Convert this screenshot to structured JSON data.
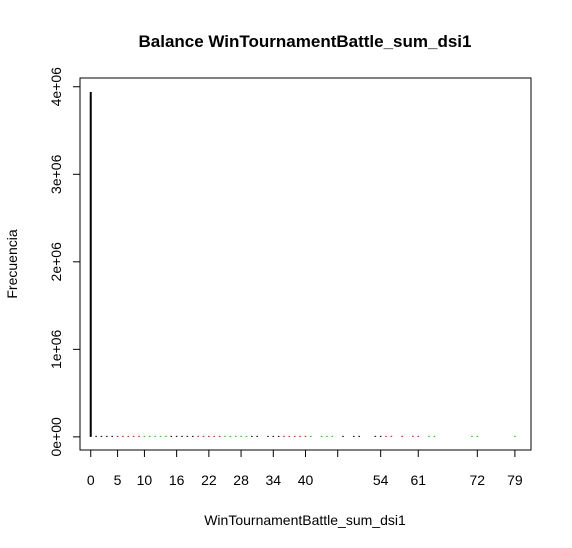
{
  "chart_data": {
    "type": "bar",
    "title": "Balance WinTournamentBattle_sum_dsi1",
    "xlabel": "WinTournamentBattle_sum_dsi1",
    "ylabel": "Frecuencia",
    "xlim": [
      -2,
      82
    ],
    "ylim": [
      -150000,
      4100000
    ],
    "grid": false,
    "legend": "none",
    "x_ticks": [
      0,
      5,
      10,
      16,
      22,
      28,
      34,
      40,
      46,
      54,
      61,
      72,
      79
    ],
    "x_tick_labels": [
      "0",
      "5",
      "10",
      "16",
      "22",
      "28",
      "34",
      "40",
      "",
      "54",
      "61",
      "72",
      "79"
    ],
    "y_ticks": [
      0,
      1000000,
      2000000,
      3000000,
      4000000
    ],
    "y_tick_labels": [
      "0e+00",
      "1e+06",
      "2e+06",
      "3e+06",
      "4e+06"
    ],
    "colors": {
      "class_a": "#000000",
      "class_b": "#ff0000",
      "class_c": "#00cd00"
    },
    "points": [
      {
        "x": 0,
        "y": 3940000,
        "color": "#000000"
      },
      {
        "x": 1,
        "y": 9000,
        "color": "#000000"
      },
      {
        "x": 2,
        "y": 7000,
        "color": "#000000"
      },
      {
        "x": 3,
        "y": 6000,
        "color": "#000000"
      },
      {
        "x": 4,
        "y": 5000,
        "color": "#000000"
      },
      {
        "x": 5,
        "y": 4000,
        "color": "#ff0000"
      },
      {
        "x": 6,
        "y": 4000,
        "color": "#ff0000"
      },
      {
        "x": 7,
        "y": 3000,
        "color": "#ff0000"
      },
      {
        "x": 8,
        "y": 3000,
        "color": "#ff0000"
      },
      {
        "x": 9,
        "y": 3000,
        "color": "#ff0000"
      },
      {
        "x": 10,
        "y": 3000,
        "color": "#00cd00"
      },
      {
        "x": 11,
        "y": 2000,
        "color": "#00cd00"
      },
      {
        "x": 12,
        "y": 2000,
        "color": "#00cd00"
      },
      {
        "x": 13,
        "y": 2000,
        "color": "#00cd00"
      },
      {
        "x": 14,
        "y": 2000,
        "color": "#00cd00"
      },
      {
        "x": 15,
        "y": 2000,
        "color": "#000000"
      },
      {
        "x": 16,
        "y": 2000,
        "color": "#000000"
      },
      {
        "x": 17,
        "y": 1500,
        "color": "#000000"
      },
      {
        "x": 18,
        "y": 1500,
        "color": "#000000"
      },
      {
        "x": 19,
        "y": 1500,
        "color": "#000000"
      },
      {
        "x": 20,
        "y": 1500,
        "color": "#ff0000"
      },
      {
        "x": 21,
        "y": 1500,
        "color": "#ff0000"
      },
      {
        "x": 22,
        "y": 1200,
        "color": "#ff0000"
      },
      {
        "x": 23,
        "y": 1200,
        "color": "#ff0000"
      },
      {
        "x": 24,
        "y": 1200,
        "color": "#ff0000"
      },
      {
        "x": 25,
        "y": 1000,
        "color": "#00cd00"
      },
      {
        "x": 26,
        "y": 1000,
        "color": "#00cd00"
      },
      {
        "x": 27,
        "y": 1000,
        "color": "#00cd00"
      },
      {
        "x": 28,
        "y": 1000,
        "color": "#00cd00"
      },
      {
        "x": 29,
        "y": 900,
        "color": "#00cd00"
      },
      {
        "x": 30,
        "y": 900,
        "color": "#000000"
      },
      {
        "x": 31,
        "y": 900,
        "color": "#000000"
      },
      {
        "x": 33,
        "y": 800,
        "color": "#000000"
      },
      {
        "x": 34,
        "y": 800,
        "color": "#000000"
      },
      {
        "x": 35,
        "y": 800,
        "color": "#000000"
      },
      {
        "x": 36,
        "y": 700,
        "color": "#ff0000"
      },
      {
        "x": 37,
        "y": 700,
        "color": "#ff0000"
      },
      {
        "x": 38,
        "y": 700,
        "color": "#ff0000"
      },
      {
        "x": 39,
        "y": 700,
        "color": "#ff0000"
      },
      {
        "x": 40,
        "y": 600,
        "color": "#ff0000"
      },
      {
        "x": 41,
        "y": 600,
        "color": "#00cd00"
      },
      {
        "x": 43,
        "y": 600,
        "color": "#00cd00"
      },
      {
        "x": 44,
        "y": 500,
        "color": "#00cd00"
      },
      {
        "x": 45,
        "y": 500,
        "color": "#00cd00"
      },
      {
        "x": 47,
        "y": 500,
        "color": "#000000"
      },
      {
        "x": 49,
        "y": 500,
        "color": "#000000"
      },
      {
        "x": 50,
        "y": 400,
        "color": "#000000"
      },
      {
        "x": 53,
        "y": 400,
        "color": "#000000"
      },
      {
        "x": 54,
        "y": 400,
        "color": "#000000"
      },
      {
        "x": 55,
        "y": 400,
        "color": "#ff0000"
      },
      {
        "x": 56,
        "y": 300,
        "color": "#ff0000"
      },
      {
        "x": 58,
        "y": 300,
        "color": "#ff0000"
      },
      {
        "x": 60,
        "y": 300,
        "color": "#ff0000"
      },
      {
        "x": 61,
        "y": 300,
        "color": "#ff0000"
      },
      {
        "x": 63,
        "y": 300,
        "color": "#00cd00"
      },
      {
        "x": 64,
        "y": 200,
        "color": "#00cd00"
      },
      {
        "x": 71,
        "y": 200,
        "color": "#00cd00"
      },
      {
        "x": 72,
        "y": 200,
        "color": "#00cd00"
      },
      {
        "x": 79,
        "y": 100,
        "color": "#00cd00"
      }
    ]
  }
}
